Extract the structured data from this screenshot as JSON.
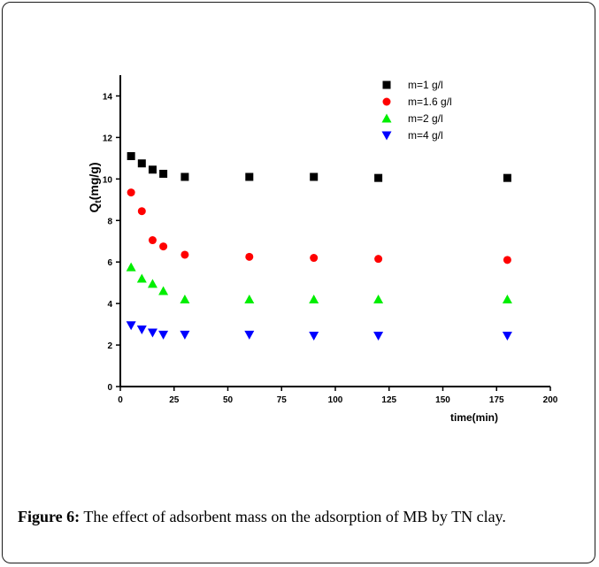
{
  "chart_data": {
    "type": "scatter",
    "xlabel": "time(min)",
    "ylabel_main": "Q",
    "ylabel_sub": "t",
    "ylabel_rest": "(mg/g)",
    "xlim": [
      0,
      200
    ],
    "ylim": [
      0,
      15
    ],
    "xticks": [
      0,
      25,
      50,
      75,
      100,
      125,
      150,
      175,
      200
    ],
    "yticks": [
      0,
      2,
      4,
      6,
      8,
      10,
      12,
      14
    ],
    "grid": false,
    "legend_position": "top-right",
    "series": [
      {
        "name": "m=1 g/l",
        "marker": "square",
        "color": "#000000",
        "x": [
          5,
          10,
          15,
          20,
          30,
          60,
          90,
          120,
          180
        ],
        "y": [
          11.1,
          10.75,
          10.45,
          10.25,
          10.1,
          10.1,
          10.1,
          10.05,
          10.05
        ]
      },
      {
        "name": "m=1.6 g/l",
        "marker": "circle",
        "color": "#ff0000",
        "x": [
          5,
          10,
          15,
          20,
          30,
          60,
          90,
          120,
          180
        ],
        "y": [
          9.35,
          8.45,
          7.05,
          6.75,
          6.35,
          6.25,
          6.2,
          6.15,
          6.1
        ]
      },
      {
        "name": "m=2 g/l",
        "marker": "triangle-up",
        "color": "#00ee00",
        "x": [
          5,
          10,
          15,
          20,
          30,
          60,
          90,
          120,
          180
        ],
        "y": [
          5.75,
          5.2,
          4.95,
          4.6,
          4.2,
          4.2,
          4.2,
          4.2,
          4.2
        ]
      },
      {
        "name": "m=4 g/l",
        "marker": "triangle-down",
        "color": "#0000ff",
        "x": [
          5,
          10,
          15,
          20,
          30,
          60,
          90,
          120,
          180
        ],
        "y": [
          2.95,
          2.75,
          2.6,
          2.5,
          2.5,
          2.5,
          2.45,
          2.45,
          2.45
        ]
      }
    ]
  },
  "caption": {
    "label": "Figure 6:",
    "text": " The effect of adsorbent mass on the adsorption of MB by TN clay."
  }
}
